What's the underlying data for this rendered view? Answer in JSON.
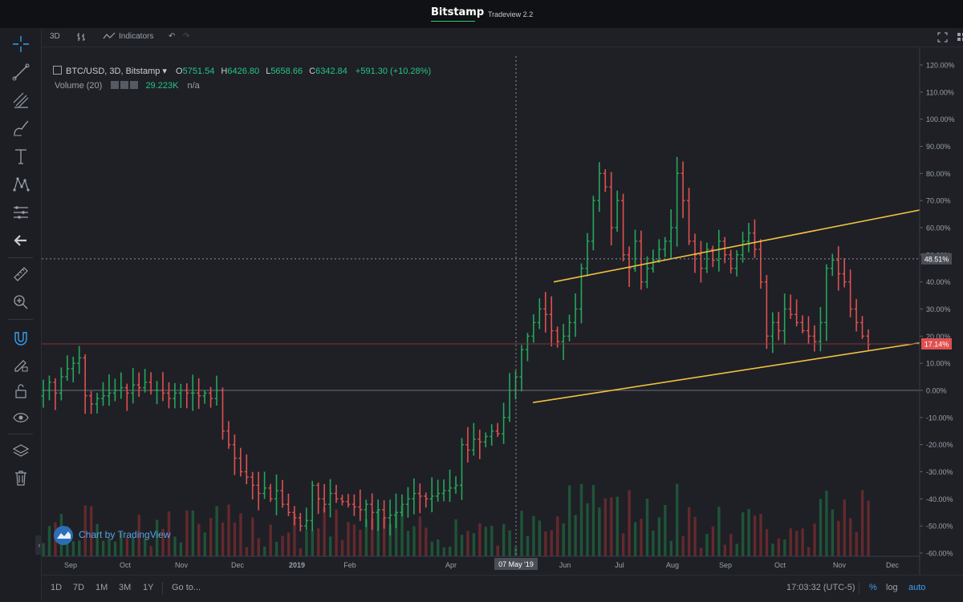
{
  "header": {
    "brand": "Bitstamp",
    "subtitle": "Tradeview 2.2"
  },
  "toolbar": {
    "interval": "3D",
    "indicators_label": "Indicators"
  },
  "legend": {
    "symbol": "BTC/USD, 3D, Bitstamp",
    "o_label": "O",
    "o_value": "5751.54",
    "h_label": "H",
    "h_value": "6426.80",
    "l_label": "L",
    "l_value": "5658.66",
    "c_label": "C",
    "c_value": "6342.84",
    "change": "+591.30 (+10.28%)",
    "volume_label": "Volume (20)",
    "volume_value": "29.223K",
    "volume_extra": "n/a"
  },
  "watermark": "Chart by TradingView",
  "bottom": {
    "ranges": [
      "1D",
      "7D",
      "1M",
      "3M",
      "1Y"
    ],
    "goto": "Go to...",
    "time": "17:03:32 (UTC-5)",
    "pct": "%",
    "log": "log",
    "auto": "auto"
  },
  "colors": {
    "up": "#26a65b",
    "down": "#e0504f",
    "trendline": "#f0c040",
    "bg": "#1e2026"
  },
  "chart_data": {
    "type": "ohlc",
    "y_axis_unit": "percent change",
    "ylim": [
      -60,
      120
    ],
    "y_ticks": [
      "120.00%",
      "110.00%",
      "100.00%",
      "90.00%",
      "80.00%",
      "70.00%",
      "60.00%",
      "50.00%",
      "40.00%",
      "30.00%",
      "20.00%",
      "10.00%",
      "0.00%",
      "-10.00%",
      "-20.00%",
      "-30.00%",
      "-40.00%",
      "-50.00%",
      "-60.00%"
    ],
    "x_ticks": [
      "Sep",
      "Oct",
      "Nov",
      "Dec",
      "2019",
      "Feb",
      "Apr",
      "Jun",
      "Jul",
      "Aug",
      "Sep",
      "Oct",
      "Nov",
      "Dec"
    ],
    "crosshair_x_label": "07 May '19",
    "crosshair_y_label": "48.51%",
    "last_value_label": "17.14%",
    "trendlines": [
      {
        "from": [
          "early Jun 2019",
          40.0
        ],
        "to": [
          "mid Dec 2019",
          66.5
        ]
      },
      {
        "from": [
          "early May 2019",
          -4.5
        ],
        "to": [
          "mid Dec 2019",
          17.5
        ]
      }
    ],
    "series_close_pct": [
      0,
      3,
      -1,
      5,
      8,
      10,
      12,
      -2,
      -5,
      -3,
      -2,
      -1,
      0,
      1,
      -1,
      2,
      1,
      3,
      0,
      0,
      -1,
      -3,
      -1,
      0,
      -1,
      -1,
      -2,
      -1,
      -3,
      0,
      -15,
      -20,
      -25,
      -30,
      -32,
      -35,
      -38,
      -36,
      -40,
      -37,
      -42,
      -45,
      -47,
      -50,
      -48,
      -35,
      -40,
      -42,
      -38,
      -40,
      -41,
      -42,
      -43,
      -44,
      -42,
      -45,
      -44,
      -47,
      -46,
      -45,
      -42,
      -40,
      -38,
      -39,
      -40,
      -39,
      -38,
      -37,
      -36,
      -35,
      -20,
      -22,
      -18,
      -19,
      -17,
      -15,
      -16,
      -10,
      0,
      5,
      15,
      20,
      25,
      30,
      28,
      22,
      18,
      20,
      25,
      30,
      45,
      55,
      70,
      80,
      75,
      60,
      70,
      50,
      45,
      55,
      40,
      45,
      48,
      52,
      55,
      60,
      80,
      70,
      55,
      50,
      45,
      52,
      48,
      55,
      50,
      45,
      50,
      55,
      58,
      52,
      40,
      20,
      25,
      22,
      30,
      28,
      25,
      22,
      20,
      18,
      25,
      45,
      48,
      43,
      40,
      30,
      25,
      20,
      17
    ],
    "volume_relative": "histogram under price, taller in Jun/Jul and Dec"
  }
}
